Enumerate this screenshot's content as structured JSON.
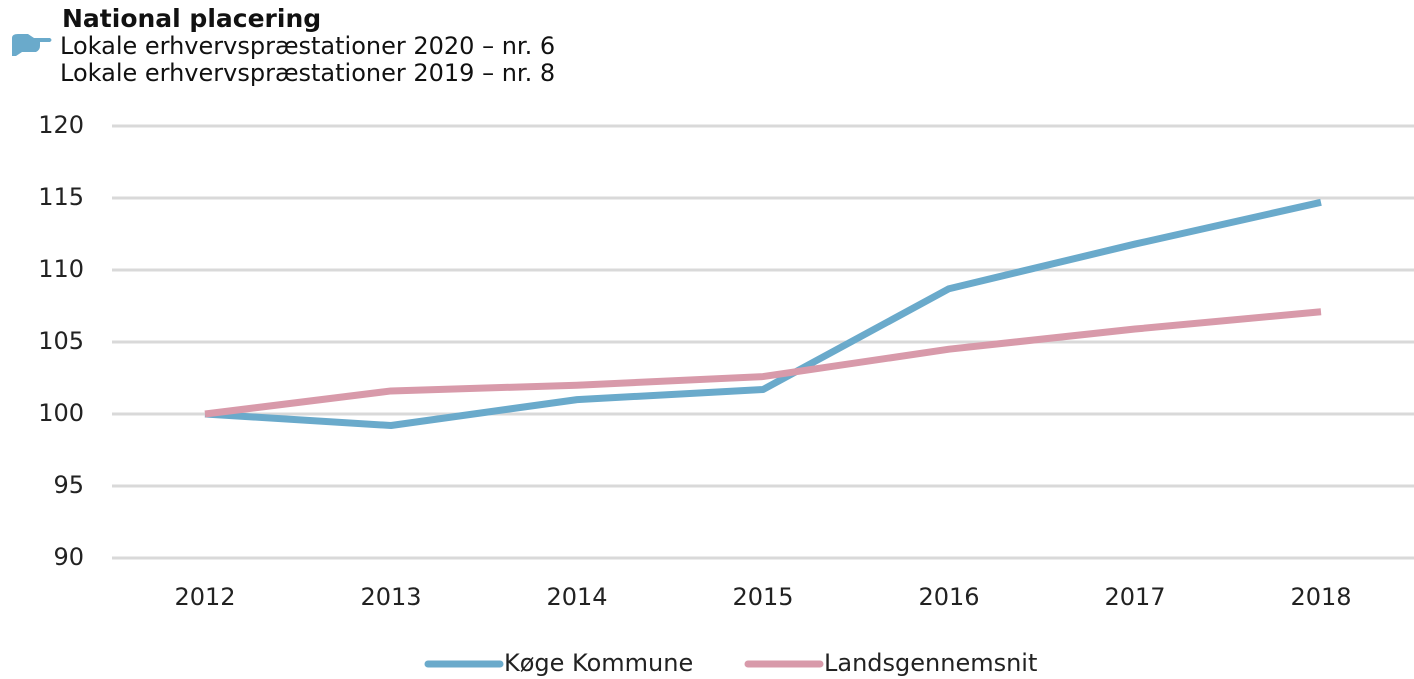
{
  "chart_data": {
    "type": "line",
    "title": "National placering",
    "subtitle": [
      "Lokale erhvervspræstationer 2020 – nr. 6",
      "Lokale erhvervspræstationer 2019 – nr. 8"
    ],
    "categories": [
      "2012",
      "2013",
      "2014",
      "2015",
      "2016",
      "2017",
      "2018"
    ],
    "series": [
      {
        "name": "Køge Kommune",
        "color": "#6aaacb",
        "values": [
          100,
          99.2,
          101.0,
          101.7,
          108.7,
          111.8,
          114.7
        ]
      },
      {
        "name": "Landsgennemsnit",
        "color": "#d89aaa",
        "values": [
          100,
          101.6,
          102.0,
          102.6,
          104.5,
          105.9,
          107.1
        ]
      }
    ],
    "ylim": [
      90,
      120
    ],
    "yticks": [
      90,
      95,
      100,
      105,
      110,
      115,
      120
    ],
    "grid": true,
    "legend": "bottom"
  }
}
